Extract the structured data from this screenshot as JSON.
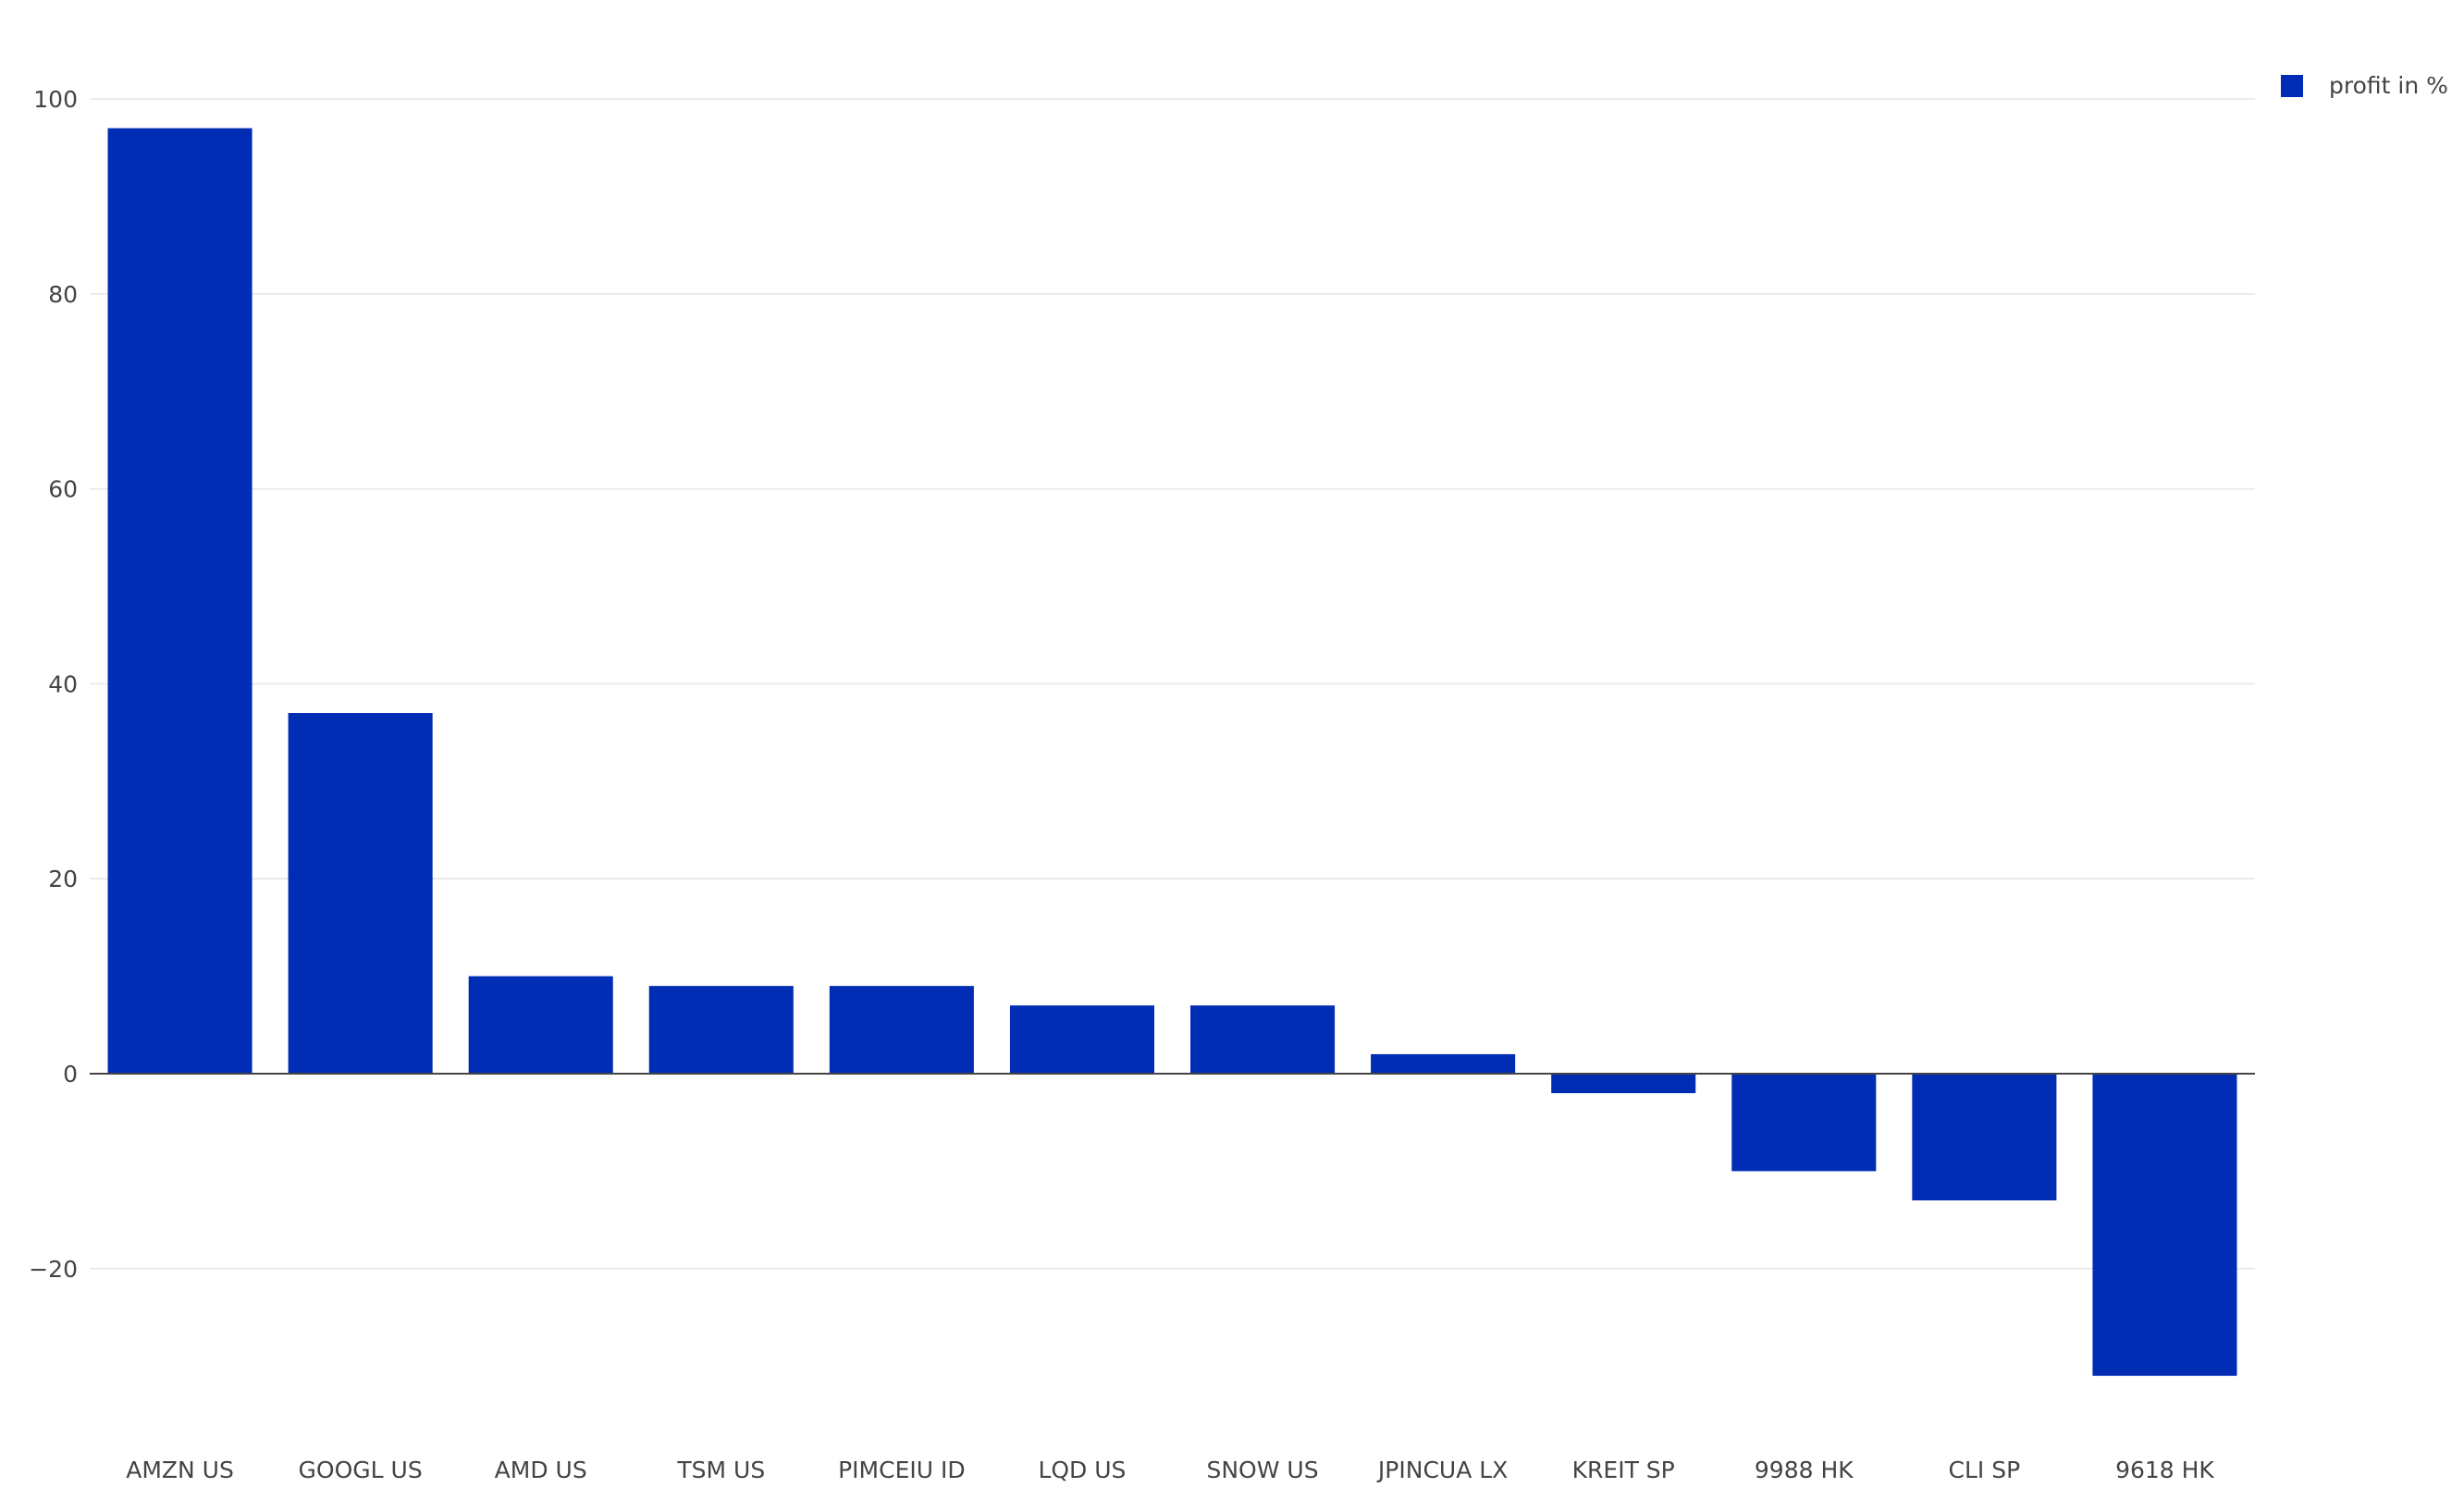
{
  "chart_data": {
    "type": "bar",
    "categories": [
      "AMZN US",
      "GOOGL US",
      "AMD US",
      "TSM US",
      "PIMCEIU ID",
      "LQD US",
      "SNOW US",
      "JPINCUA LX",
      "KREIT SP",
      "9988 HK",
      "CLI SP",
      "9618 HK"
    ],
    "series": [
      {
        "name": "profit in %",
        "values": [
          97,
          37,
          10,
          9,
          9,
          7,
          7,
          2,
          -2,
          -10,
          -13,
          -31
        ],
        "color": "#002db3"
      }
    ],
    "yticks": [
      -20,
      0,
      20,
      40,
      60,
      80,
      100
    ],
    "ylim": [
      -36,
      106
    ],
    "grid": true,
    "legend_position": "top-right",
    "title": "",
    "xlabel": "",
    "ylabel": ""
  }
}
